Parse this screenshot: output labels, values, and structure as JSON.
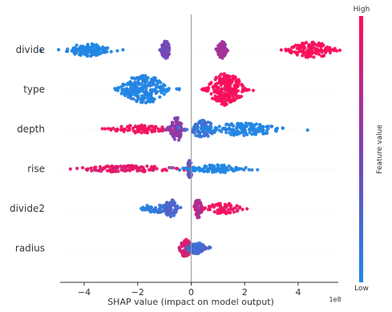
{
  "chart_data": {
    "type": "scatter",
    "subtype": "shap-beeswarm",
    "title": "",
    "xlabel": "SHAP value (impact on model output)",
    "x_exponent": "1e8",
    "xlim": [
      -4.9,
      5.5
    ],
    "xticks": [
      -4,
      -2,
      0,
      2,
      4
    ],
    "grid": false,
    "colorbar": {
      "label": "Feature value",
      "high_label": "High",
      "low_label": "Low",
      "low_color": "#1e88e5",
      "high_color": "#ff0d57",
      "mid_color": "#7b42b4"
    },
    "features": [
      {
        "name": "divide",
        "clusters": [
          {
            "x": -3.8,
            "spread": 0.45,
            "height": 8,
            "value": 0.0,
            "count": 120
          },
          {
            "x": -0.95,
            "spread": 0.09,
            "height": 11,
            "value": 0.45,
            "count": 70
          },
          {
            "x": 1.15,
            "spread": 0.09,
            "height": 11,
            "value": 0.65,
            "count": 70
          },
          {
            "x": 4.5,
            "spread": 0.45,
            "height": 10,
            "value": 1.0,
            "count": 120
          }
        ]
      },
      {
        "name": "type",
        "clusters": [
          {
            "x": -1.8,
            "spread": 0.45,
            "height": 18,
            "value": 0.0,
            "count": 240
          },
          {
            "x": 1.3,
            "spread": 0.35,
            "height": 20,
            "value": 1.0,
            "count": 240
          }
        ]
      },
      {
        "name": "depth",
        "clusters": [
          {
            "x": -1.85,
            "spread": 0.6,
            "height": 5,
            "value": 0.95,
            "count": 90
          },
          {
            "x": -0.55,
            "spread": 0.13,
            "height": 15,
            "value": 0.55,
            "count": 80
          },
          {
            "x": 0.45,
            "spread": 0.25,
            "height": 11,
            "value": 0.15,
            "count": 90
          },
          {
            "x": 1.95,
            "spread": 0.75,
            "height": 8,
            "value": 0.0,
            "count": 160
          }
        ]
      },
      {
        "name": "rise",
        "clusters": [
          {
            "x": -2.4,
            "spread": 0.95,
            "height": 4,
            "value": 0.9,
            "count": 120
          },
          {
            "x": -0.05,
            "spread": 0.05,
            "height": 12,
            "value": 0.4,
            "count": 40
          },
          {
            "x": 0.9,
            "spread": 0.55,
            "height": 5,
            "value": 0.0,
            "count": 100
          }
        ]
      },
      {
        "name": "divide2",
        "clusters": [
          {
            "x": -1.35,
            "spread": 0.3,
            "height": 5,
            "value": 0.1,
            "count": 50
          },
          {
            "x": -0.75,
            "spread": 0.14,
            "height": 11,
            "value": 0.25,
            "count": 60
          },
          {
            "x": 0.25,
            "spread": 0.08,
            "height": 12,
            "value": 0.7,
            "count": 50
          },
          {
            "x": 1.2,
            "spread": 0.35,
            "height": 7,
            "value": 0.95,
            "count": 70
          }
        ]
      },
      {
        "name": "radius",
        "clusters": [
          {
            "x": -0.2,
            "spread": 0.12,
            "height": 11,
            "value": 0.85,
            "count": 90
          },
          {
            "x": 0.2,
            "spread": 0.18,
            "height": 7,
            "value": 0.2,
            "count": 80
          }
        ]
      }
    ]
  }
}
